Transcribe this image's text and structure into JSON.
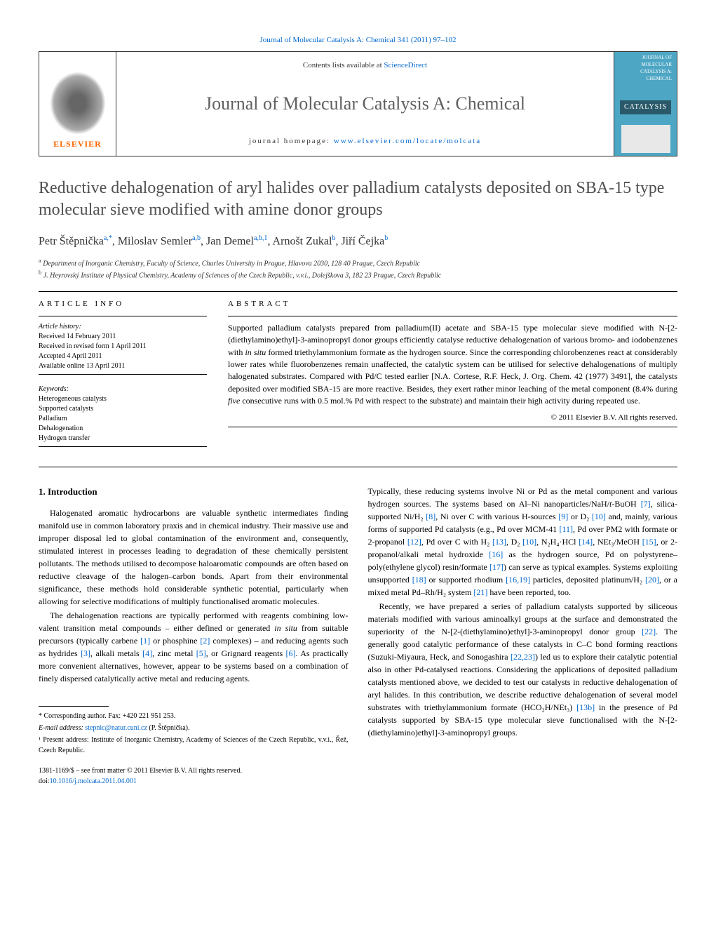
{
  "top_link": "Journal of Molecular Catalysis A: Chemical 341 (2011) 97–102",
  "header": {
    "publisher_name": "ELSEVIER",
    "contents_prefix": "Contents lists available at ",
    "contents_link": "ScienceDirect",
    "journal_name": "Journal of Molecular Catalysis A: Chemical",
    "homepage_prefix": "journal homepage: ",
    "homepage_url": "www.elsevier.com/locate/molcata",
    "cover_small_label": "JOURNAL OF MOLECULAR CATALYSIS A: CHEMICAL",
    "cover_title": "CATALYSIS"
  },
  "article": {
    "title": "Reductive dehalogenation of aryl halides over palladium catalysts deposited on SBA-15 type molecular sieve modified with amine donor groups",
    "authors_html": "Petr Štěpnička",
    "a1_sup": "a,*",
    "a2": ", Miloslav Semler",
    "a2_sup": "a,b",
    "a3": ", Jan Demel",
    "a3_sup": "a,b,1",
    "a4": ", Arnošt Zukal",
    "a4_sup": "b",
    "a5": ", Jiří Čejka",
    "a5_sup": "b",
    "affiliations": {
      "a": "Department of Inorganic Chemistry, Faculty of Science, Charles University in Prague, Hlavova 2030, 128 40 Prague, Czech Republic",
      "b": "J. Heyrovský Institute of Physical Chemistry, Academy of Sciences of the Czech Republic, v.v.i., Dolejškova 3, 182 23 Prague, Czech Republic"
    }
  },
  "info": {
    "heading": "ARTICLE INFO",
    "history_label": "Article history:",
    "received": "Received 14 February 2011",
    "revised": "Received in revised form 1 April 2011",
    "accepted": "Accepted 4 April 2011",
    "online": "Available online 13 April 2011",
    "keywords_label": "Keywords:",
    "keywords": [
      "Heterogeneous catalysts",
      "Supported catalysts",
      "Palladium",
      "Dehalogenation",
      "Hydrogen transfer"
    ]
  },
  "abstract": {
    "heading": "ABSTRACT",
    "text_1": "Supported palladium catalysts prepared from palladium(II) acetate and SBA-15 type molecular sieve modified with N-[2-(diethylamino)ethyl]-3-aminopropyl donor groups efficiently catalyse reductive dehalogenation of various bromo- and iodobenzenes with ",
    "text_em1": "in situ",
    "text_2": " formed triethylammonium formate as the hydrogen source. Since the corresponding chlorobenzenes react at considerably lower rates while fluorobenzenes remain unaffected, the catalytic system can be utilised for selective dehalogenations of multiply halogenated substrates. Compared with Pd/C tested earlier [N.A. Cortese, R.F. Heck, J. Org. Chem. 42 (1977) 3491], the catalysts deposited over modified SBA-15 are more reactive. Besides, they exert rather minor leaching of the metal component (8.4% during ",
    "text_em2": "five",
    "text_3": " consecutive runs with 0.5 mol.% Pd with respect to the substrate) and maintain their high activity during repeated use.",
    "copyright": "© 2011 Elsevier B.V. All rights reserved."
  },
  "body": {
    "section_heading": "1. Introduction",
    "col1_p1": "Halogenated aromatic hydrocarbons are valuable synthetic intermediates finding manifold use in common laboratory praxis and in chemical industry. Their massive use and improper disposal led to global contamination of the environment and, consequently, stimulated interest in processes leading to degradation of these chemically persistent pollutants. The methods utilised to decompose haloaromatic compounds are often based on reductive cleavage of the halogen–carbon bonds. Apart from their environmental significance, these methods hold considerable synthetic potential, particularly when allowing for selective modifications of multiply functionalised aromatic molecules.",
    "col1_p2a": "The dehalogenation reactions are typically performed with reagents combining low-valent transition metal compounds – either defined or generated ",
    "col1_p2_em": "in situ",
    "col1_p2b": " from suitable precursors (typically carbene ",
    "ref1": "[1]",
    "col1_p2c": " or phosphine ",
    "ref2": "[2]",
    "col1_p2d": " complexes) – and reducing agents such as hydrides ",
    "ref3": "[3]",
    "col1_p2e": ", alkali metals ",
    "ref4": "[4]",
    "col1_p2f": ", zinc metal ",
    "ref5": "[5]",
    "col1_p2g": ", or Grignard reagents ",
    "ref6": "[6]",
    "col1_p2h": ". As practically more convenient alternatives, however, appear to be systems based on a combination of finely dispersed catalytically active metal and reducing agents.",
    "col2_p1a": "Typically, these reducing systems involve Ni or Pd as the metal component and various hydrogen sources. The systems based on Al–Ni nanoparticles/NaH/",
    "col2_em1": "t",
    "col2_p1b": "-BuOH ",
    "ref7": "[7]",
    "col2_p1c": ", silica-supported Ni/H₂ ",
    "ref8": "[8]",
    "col2_p1d": ", Ni over C with various H-sources ",
    "ref9": "[9]",
    "col2_p1e": " or D₂ ",
    "ref10": "[10]",
    "col2_p1f": " and, mainly, various forms of supported Pd catalysts (e.g., Pd over MCM-41 ",
    "ref11": "[11]",
    "col2_p1g": ", Pd over PM2 with formate or 2-propanol ",
    "ref12": "[12]",
    "col2_p1h": ", Pd over C with H₂ ",
    "ref13": "[13]",
    "col2_p1i": ", D₂ ",
    "ref10b": "[10]",
    "col2_p1j": ", N₂H₄·HCl ",
    "ref14": "[14]",
    "col2_p1k": ", NEt₃/MeOH ",
    "ref15": "[15]",
    "col2_p1l": ", or 2-propanol/alkali metal hydroxide ",
    "ref16": "[16]",
    "col2_p1m": " as the hydrogen source, Pd on polystyrene–poly(ethylene glycol) resin/formate ",
    "ref17": "[17]",
    "col2_p1n": ") can serve as typical examples. Systems exploiting unsupported ",
    "ref18": "[18]",
    "col2_p1o": " or supported rhodium ",
    "ref1619": "[16,19]",
    "col2_p1p": " particles, deposited platinum/H₂ ",
    "ref20": "[20]",
    "col2_p1q": ", or a mixed metal Pd–Rh/H₂ system ",
    "ref21": "[21]",
    "col2_p1r": " have been reported, too.",
    "col2_p2a": "Recently, we have prepared a series of palladium catalysts supported by siliceous materials modified with various aminoalkyl groups at the surface and demonstrated the superiority of the N-[2-(diethylamino)ethyl]-3-aminopropyl donor group ",
    "ref22": "[22]",
    "col2_p2b": ". The generally good catalytic performance of these catalysts in C–C bond forming reactions (Suzuki-Miyaura, Heck, and Sonogashira ",
    "ref2223": "[22,23]",
    "col2_p2c": ") led us to explore their catalytic potential also in other Pd-catalysed reactions. Considering the applications of deposited palladium catalysts mentioned above, we decided to test our catalysts in reductive dehalogenation of aryl halides. In this contribution, we describe reductive dehalogenation of several model substrates with triethylammonium formate (HCO₂H/NEt₃) ",
    "ref13b": "[13b]",
    "col2_p2d": " in the presence of Pd catalysts supported by SBA-15 type molecular sieve functionalised with the N-[2-(diethylamino)ethyl]-3-aminopropyl groups."
  },
  "footer": {
    "corr": "* Corresponding author. Fax: +420 221 951 253.",
    "email_label": "E-mail address: ",
    "email": "stepnic@natur.cuni.cz",
    "email_suffix": " (P. Štěpnička).",
    "note1": "¹ Present address: Institute of Inorganic Chemistry, Academy of Sciences of the Czech Republic, v.v.i., Řež, Czech Republic.",
    "front_matter": "1381-1169/$ – see front matter © 2011 Elsevier B.V. All rights reserved.",
    "doi_prefix": "doi:",
    "doi": "10.1016/j.molcata.2011.04.001"
  },
  "colors": {
    "link": "#0066cc",
    "publisher_orange": "#ff6600",
    "journal_gray": "#606060",
    "cover_bg": "#4da6c4",
    "cover_title_bg": "#2a5a6a"
  }
}
